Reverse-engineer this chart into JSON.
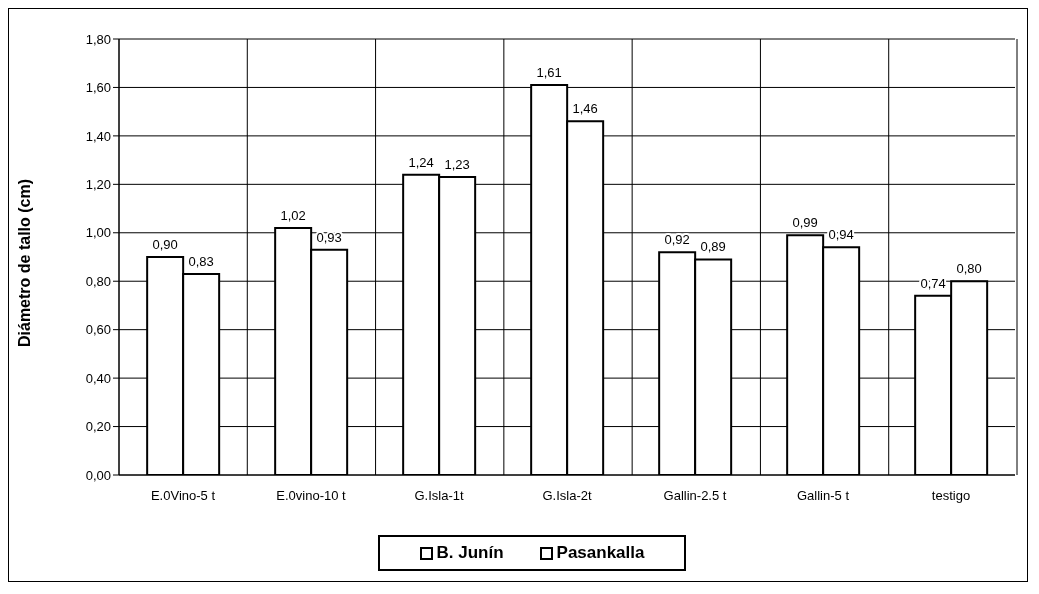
{
  "chart_data": {
    "type": "bar",
    "ylabel": "Diámetro de tallo (cm)",
    "categories": [
      "E.0Vino-5 t",
      "E.0vino-10 t",
      "G.Isla-1t",
      "G.Isla-2t",
      "Gallin-2.5 t",
      "Gallin-5 t",
      "testigo"
    ],
    "series": [
      {
        "name": "B. Junín",
        "color": "#ffffff",
        "values": [
          0.9,
          1.02,
          1.24,
          1.61,
          0.92,
          0.99,
          0.74
        ],
        "value_labels": [
          "0,90",
          "1,02",
          "1,24",
          "1,61",
          "0,92",
          "0,99",
          "0,74"
        ]
      },
      {
        "name": "Pasankalla",
        "color": "#ffffff",
        "values": [
          0.83,
          0.93,
          1.23,
          1.46,
          0.89,
          0.94,
          0.8
        ],
        "value_labels": [
          "0,83",
          "0,93",
          "1,23",
          "1,46",
          "0,89",
          "0,94",
          "0,80"
        ]
      }
    ],
    "ylim": [
      0,
      1.8
    ],
    "yticks": [
      {
        "value": 0,
        "label": "0,00"
      },
      {
        "value": 0.2,
        "label": "0,20"
      },
      {
        "value": 0.4,
        "label": "0,40"
      },
      {
        "value": 0.6,
        "label": "0,60"
      },
      {
        "value": 0.8,
        "label": "0,80"
      },
      {
        "value": 1.0,
        "label": "1,00"
      },
      {
        "value": 1.2,
        "label": "1,20"
      },
      {
        "value": 1.4,
        "label": "1,40"
      },
      {
        "value": 1.6,
        "label": "1,60"
      },
      {
        "value": 1.8,
        "label": "1,80"
      }
    ],
    "grid": true,
    "legend": "bottom"
  }
}
